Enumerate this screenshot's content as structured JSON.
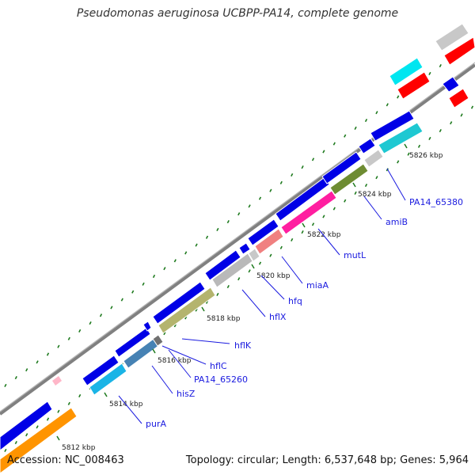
{
  "title": "Pseudomonas aeruginosa UCBPP-PA14, complete genome",
  "accession_text": "Accession: NC_008463",
  "topology_text": "Topology: circular; Length: 6,537,648 bp; Genes: 5,964",
  "colors": {
    "backbone": "#808080",
    "tick": "#1e7a1e",
    "forward_gene": "#0000e6",
    "label": "#1a1adf"
  },
  "kbp_labels": [
    "5812 kbp",
    "5814 kbp",
    "5816 kbp",
    "5818 kbp",
    "5820 kbp",
    "5822 kbp",
    "5824 kbp",
    "5826 kbp"
  ],
  "genes": [
    "purA",
    "hisZ",
    "PA14_65260",
    "hflC",
    "hflK",
    "hflX",
    "hfq",
    "miaA",
    "mutL",
    "amiB",
    "PA14_65380"
  ]
}
